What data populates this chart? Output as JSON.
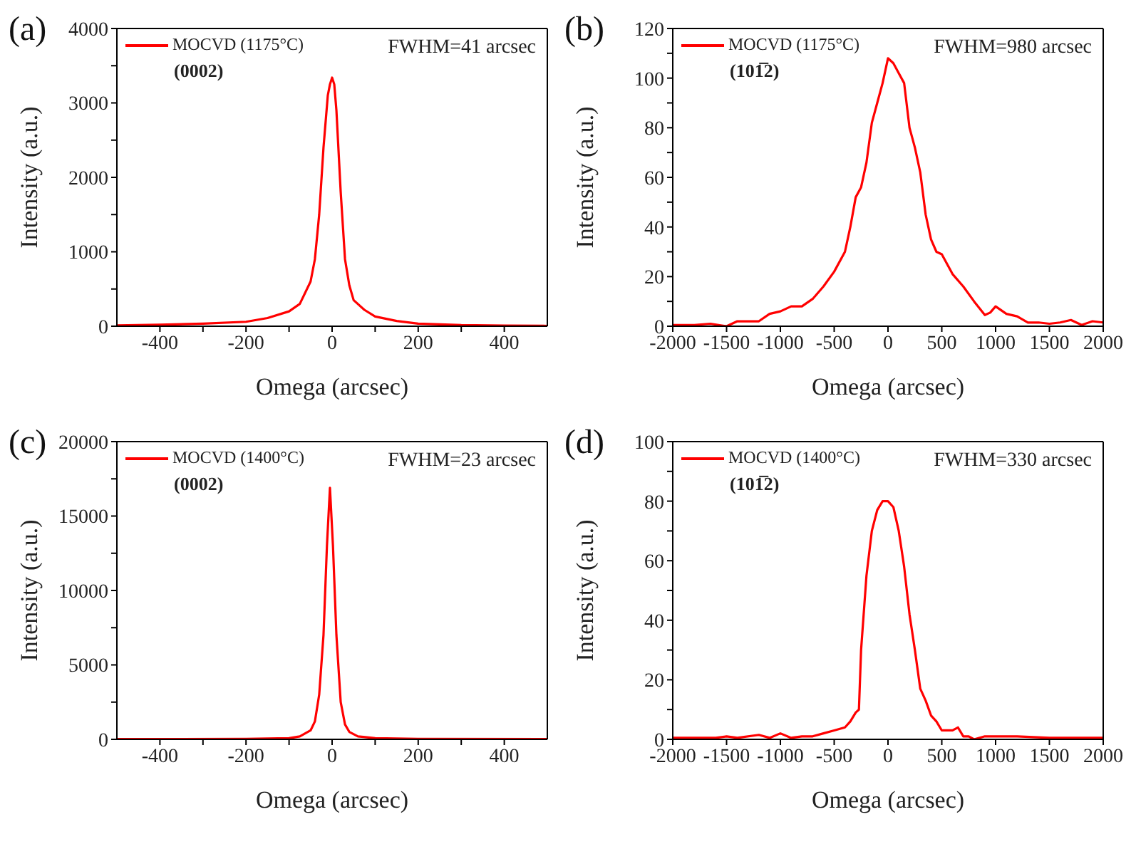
{
  "chart_data": [
    {
      "type": "line",
      "title": "(a)",
      "xlabel": "Omega (arcsec)",
      "ylabel": "Intensity (a.u.)",
      "annotations": [
        "FWHM=41 arcsec",
        "(0002)"
      ],
      "legend": "top left",
      "marker": "none",
      "line_style": "solid",
      "xlim": [
        -500,
        500
      ],
      "xticks": [
        -400,
        {
          "value": -300,
          "label": null
        },
        -200,
        {
          "value": -100,
          "label": null
        },
        0,
        {
          "value": 100,
          "label": null
        },
        200,
        {
          "value": 300,
          "label": null
        },
        400
      ],
      "ylim": [
        0,
        4000
      ],
      "yticks": [
        0,
        {
          "value": 500,
          "label": null
        },
        1000,
        {
          "value": 1500,
          "label": null
        },
        2000,
        {
          "value": 2500,
          "label": null
        },
        3000,
        {
          "value": 3500,
          "label": null
        },
        4000
      ],
      "series": [
        {
          "name": "MOCVD (1175°C)",
          "color": "#ff0000",
          "x": [
            -500,
            -400,
            -300,
            -200,
            -150,
            -100,
            -75,
            -50,
            -40,
            -30,
            -20,
            -10,
            -5,
            0,
            5,
            10,
            20,
            30,
            40,
            50,
            75,
            100,
            150,
            200,
            300,
            400,
            500
          ],
          "values": [
            10,
            20,
            35,
            60,
            110,
            200,
            300,
            600,
            900,
            1500,
            2400,
            3100,
            3250,
            3340,
            3250,
            2900,
            1800,
            900,
            550,
            350,
            220,
            130,
            70,
            35,
            15,
            8,
            5
          ]
        }
      ]
    },
    {
      "type": "line",
      "title": "(b)",
      "xlabel": "Omega (arcsec)",
      "ylabel": "Intensity (a.u.)",
      "annotations": [
        "FWHM=980 arcsec",
        "(101̅2)"
      ],
      "legend": "top left",
      "marker": "none",
      "line_style": "solid",
      "xlim": [
        -2000,
        2000
      ],
      "xticks": [
        -2000,
        -1500,
        -1000,
        -500,
        0,
        500,
        1000,
        1500,
        2000
      ],
      "ylim": [
        0,
        120
      ],
      "yticks": [
        0,
        {
          "value": 10,
          "label": null
        },
        20,
        {
          "value": 30,
          "label": null
        },
        40,
        {
          "value": 50,
          "label": null
        },
        60,
        {
          "value": 70,
          "label": null
        },
        80,
        {
          "value": 90,
          "label": null
        },
        100,
        {
          "value": 110,
          "label": null
        },
        120
      ],
      "series": [
        {
          "name": "MOCVD (1175°C)",
          "color": "#ff0000",
          "x": [
            -2000,
            -1800,
            -1650,
            -1500,
            -1400,
            -1200,
            -1100,
            -1000,
            -900,
            -800,
            -700,
            -600,
            -500,
            -400,
            -350,
            -300,
            -250,
            -200,
            -150,
            -100,
            -50,
            0,
            50,
            100,
            150,
            200,
            250,
            300,
            350,
            400,
            450,
            500,
            600,
            700,
            800,
            900,
            950,
            1000,
            1100,
            1200,
            1300,
            1400,
            1500,
            1600,
            1700,
            1800,
            1900,
            2000
          ],
          "values": [
            0.5,
            0.5,
            1,
            0,
            2,
            2,
            5,
            6,
            8,
            8,
            11,
            16,
            22,
            30,
            40,
            52,
            56,
            66,
            82,
            90,
            98,
            108,
            106,
            102,
            98,
            80,
            72,
            62,
            45,
            35,
            30,
            29,
            21,
            16,
            10,
            4.5,
            5.5,
            8,
            5,
            4,
            1.5,
            1.5,
            1,
            1.5,
            2.5,
            0.5,
            2,
            1.5
          ]
        }
      ]
    },
    {
      "type": "line",
      "title": "(c)",
      "xlabel": "Omega (arcsec)",
      "ylabel": "Intensity (a.u.)",
      "annotations": [
        "FWHM=23 arcsec",
        "(0002)"
      ],
      "legend": "top left",
      "marker": "none",
      "line_style": "solid",
      "xlim": [
        -500,
        500
      ],
      "xticks": [
        -400,
        {
          "value": -300,
          "label": null
        },
        -200,
        {
          "value": -100,
          "label": null
        },
        0,
        {
          "value": 100,
          "label": null
        },
        200,
        {
          "value": 300,
          "label": null
        },
        400
      ],
      "ylim": [
        0,
        20000
      ],
      "yticks": [
        0,
        {
          "value": 2500,
          "label": null
        },
        5000,
        {
          "value": 7500,
          "label": null
        },
        10000,
        {
          "value": 12500,
          "label": null
        },
        15000,
        {
          "value": 17500,
          "label": null
        },
        20000
      ],
      "series": [
        {
          "name": "MOCVD (1400°C)",
          "color": "#ff0000",
          "x": [
            -500,
            -200,
            -100,
            -75,
            -50,
            -40,
            -30,
            -20,
            -12,
            -5,
            2,
            10,
            20,
            30,
            40,
            60,
            100,
            200,
            500
          ],
          "values": [
            20,
            30,
            80,
            200,
            600,
            1200,
            3000,
            7000,
            13000,
            16900,
            13000,
            7000,
            2500,
            1000,
            500,
            200,
            80,
            30,
            15
          ]
        }
      ]
    },
    {
      "type": "line",
      "title": "(d)",
      "xlabel": "Omega (arcsec)",
      "ylabel": "Intensity (a.u.)",
      "annotations": [
        "FWHM=330 arcsec",
        "(101̅2)"
      ],
      "legend": "top left",
      "marker": "none",
      "line_style": "solid",
      "xlim": [
        -2000,
        2000
      ],
      "xticks": [
        -2000,
        -1500,
        -1000,
        -500,
        0,
        500,
        1000,
        1500,
        2000
      ],
      "ylim": [
        0,
        100
      ],
      "yticks": [
        0,
        {
          "value": 10,
          "label": null
        },
        20,
        {
          "value": 30,
          "label": null
        },
        40,
        {
          "value": 50,
          "label": null
        },
        60,
        {
          "value": 70,
          "label": null
        },
        80,
        {
          "value": 90,
          "label": null
        },
        100
      ],
      "series": [
        {
          "name": "MOCVD (1400°C)",
          "color": "#ff0000",
          "x": [
            -2000,
            -1800,
            -1600,
            -1500,
            -1400,
            -1200,
            -1100,
            -1000,
            -900,
            -800,
            -700,
            -600,
            -500,
            -400,
            -350,
            -300,
            -270,
            -250,
            -200,
            -150,
            -100,
            -50,
            0,
            50,
            100,
            150,
            200,
            250,
            300,
            350,
            400,
            450,
            500,
            600,
            650,
            700,
            750,
            800,
            900,
            1000,
            1200,
            1500,
            1800,
            2000
          ],
          "values": [
            0.5,
            0.5,
            0.5,
            1,
            0.5,
            1.5,
            0.5,
            2,
            0.5,
            1,
            1,
            2,
            3,
            4,
            6,
            9,
            10,
            30,
            55,
            70,
            77,
            80,
            80,
            78,
            70,
            58,
            42,
            30,
            17,
            13,
            8,
            6,
            3,
            3,
            4,
            1,
            1,
            0,
            1,
            1,
            1,
            0.5,
            0.5,
            0.5
          ]
        }
      ]
    }
  ]
}
